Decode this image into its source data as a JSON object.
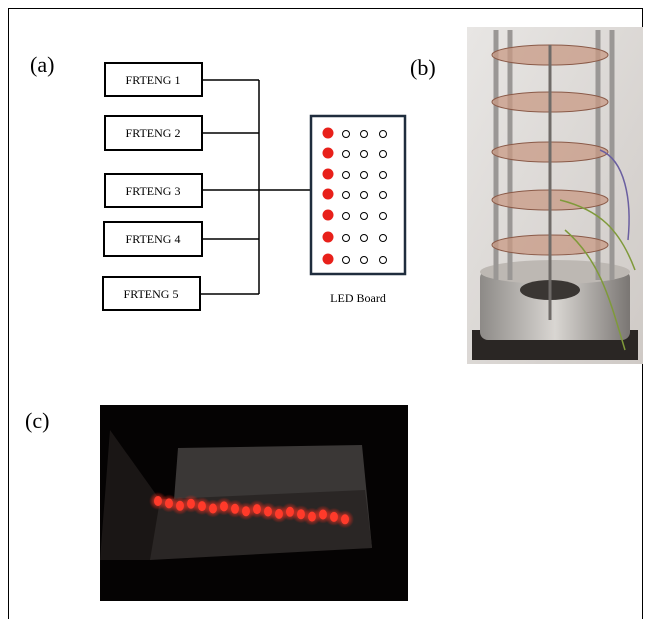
{
  "panels": [
    {
      "label": "(a)"
    },
    {
      "label": "(b)"
    },
    {
      "label": "(c)"
    }
  ],
  "nodes": [
    {
      "label": "FRTENG 1"
    },
    {
      "label": "FRTENG 2"
    },
    {
      "label": "FRTENG 3"
    },
    {
      "label": "FRTENG 4"
    },
    {
      "label": "FRTENG 5"
    }
  ],
  "led_board": {
    "label": "LED Board"
  }
}
